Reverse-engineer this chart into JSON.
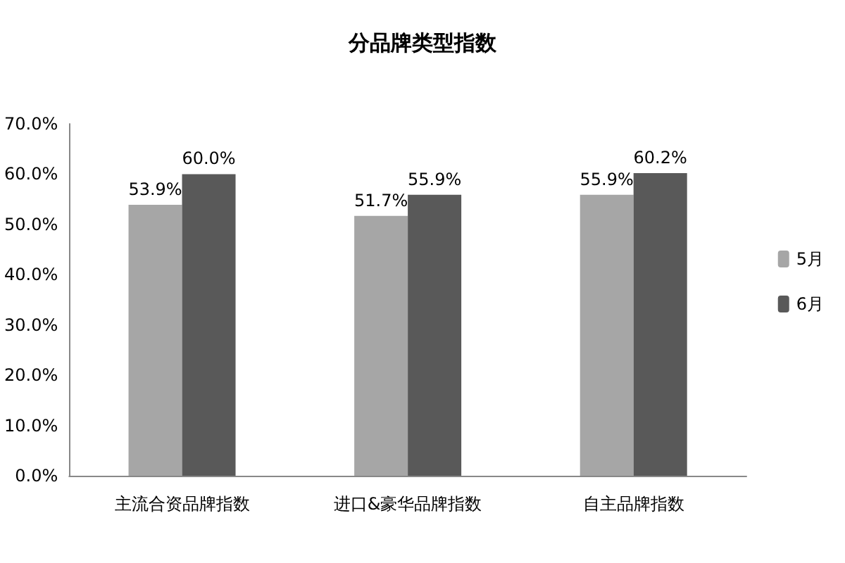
{
  "chart_data": {
    "type": "bar",
    "title": "分品牌类型指数",
    "categories": [
      "主流合资品牌指数",
      "进口&豪华品牌指数",
      "自主品牌指数"
    ],
    "series": [
      {
        "name": "5月",
        "color": "#a6a6a6",
        "values": [
          53.9,
          51.7,
          55.9
        ],
        "value_labels": [
          "53.9%",
          "51.7%",
          "55.9%"
        ]
      },
      {
        "name": "6月",
        "color": "#595959",
        "values": [
          60.0,
          55.9,
          60.2
        ],
        "value_labels": [
          "60.0%",
          "55.9%",
          "60.2%"
        ]
      }
    ],
    "ylim": [
      0,
      70
    ],
    "yticks": [
      {
        "value": 0,
        "label": "0.0%"
      },
      {
        "value": 10,
        "label": "10.0%"
      },
      {
        "value": 20,
        "label": "20.0%"
      },
      {
        "value": 30,
        "label": "30.0%"
      },
      {
        "value": 40,
        "label": "40.0%"
      },
      {
        "value": 50,
        "label": "50.0%"
      },
      {
        "value": 60,
        "label": "60.0%"
      },
      {
        "value": 70,
        "label": "70.0%"
      }
    ],
    "grid": false,
    "legend": "right"
  }
}
